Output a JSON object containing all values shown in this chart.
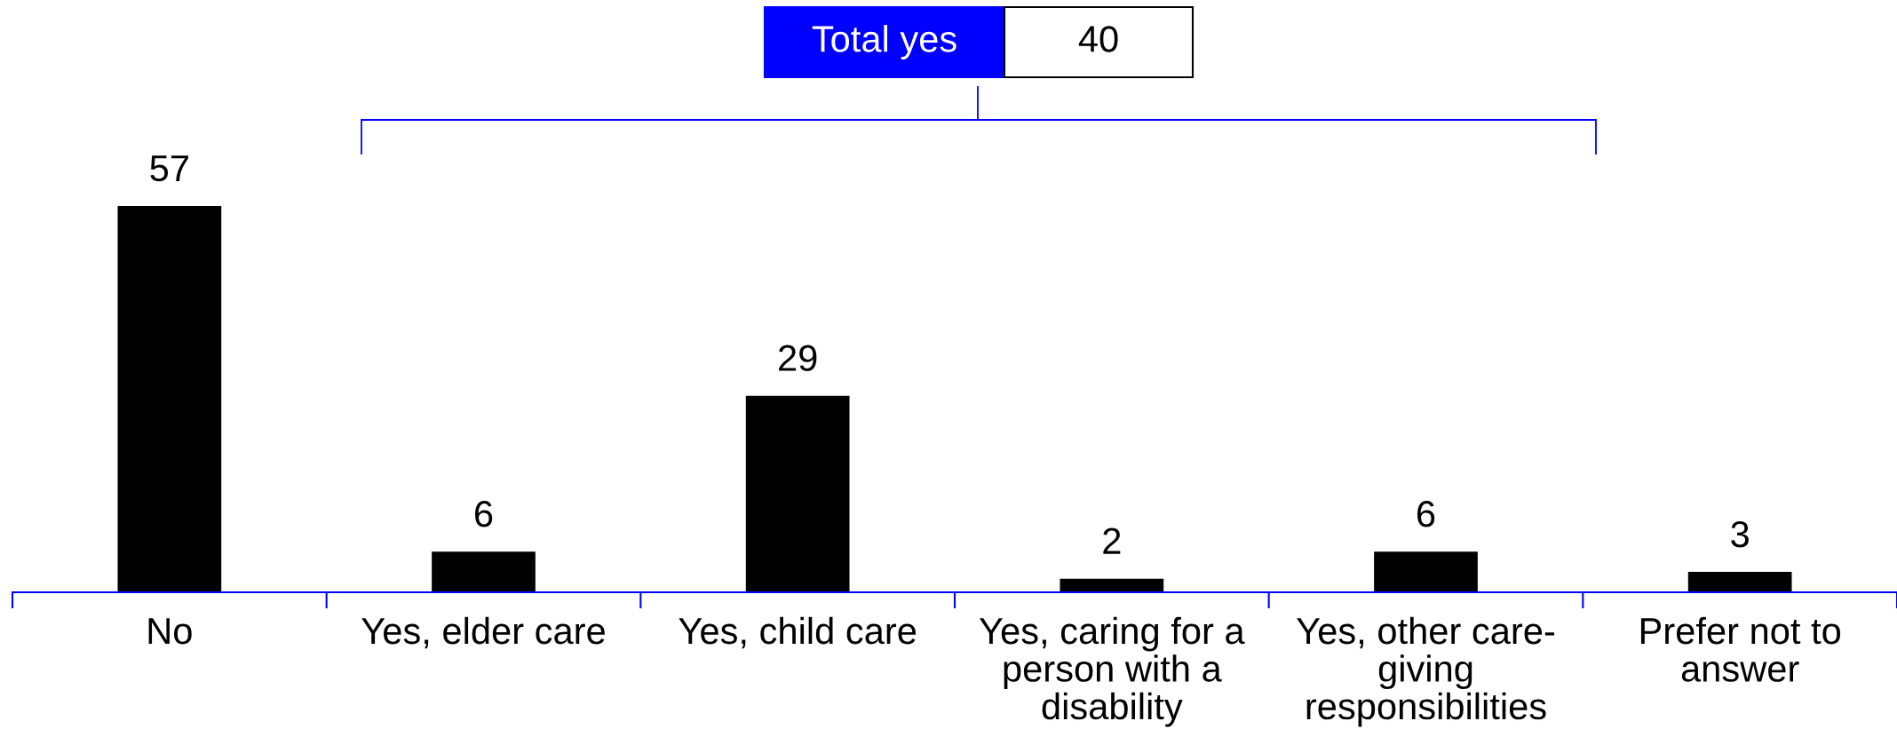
{
  "chart_data": {
    "type": "bar",
    "categories": [
      "No",
      "Yes, elder care",
      "Yes, child care",
      "Yes, caring for a\nperson with a\ndisability",
      "Yes, other care-\ngiving\nresponsibilities",
      "Prefer not to\nanswer"
    ],
    "values": [
      57,
      6,
      29,
      2,
      6,
      3
    ],
    "color": "#000000",
    "data_labels": true,
    "tick_labels": "x",
    "annotations": [
      "Total yes",
      "40"
    ]
  }
}
